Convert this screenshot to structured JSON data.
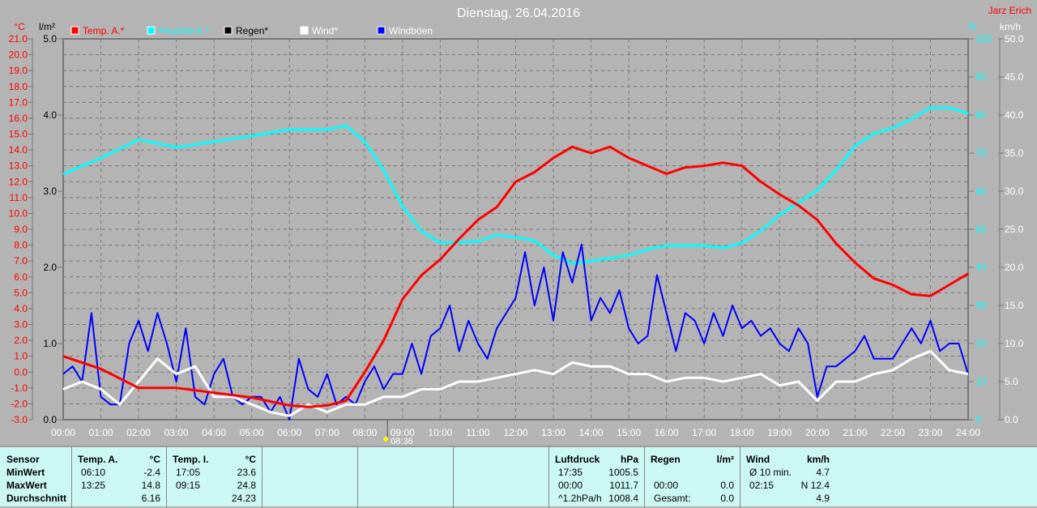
{
  "header": {
    "title": "Dienstag, 26.04.2016",
    "author": "Jarz Erich",
    "marker_time": "08:36"
  },
  "chart_data": {
    "type": "line",
    "title": "Dienstag, 26.04.2016",
    "x_unit": "time (h)",
    "x_ticks": [
      "00:00",
      "01:00",
      "02:00",
      "03:00",
      "04:00",
      "05:00",
      "06:00",
      "07:00",
      "08:00",
      "09:00",
      "10:00",
      "11:00",
      "12:00",
      "13:00",
      "14:00",
      "15:00",
      "16:00",
      "17:00",
      "18:00",
      "19:00",
      "20:00",
      "21:00",
      "22:00",
      "23:00",
      "24:00"
    ],
    "axes": {
      "temp": {
        "unit": "°C",
        "range": [
          -3,
          21
        ],
        "ticks": [
          "21.0",
          "20.0",
          "19.0",
          "18.0",
          "17.0",
          "16.0",
          "15.0",
          "14.0",
          "13.0",
          "12.0",
          "11.0",
          "10.0",
          "9.0",
          "8.0",
          "7.0",
          "6.0",
          "5.0",
          "4.0",
          "3.0",
          "2.0",
          "1.0",
          "0.0",
          "-1.0",
          "-2.0",
          "-3.0"
        ]
      },
      "rain": {
        "unit": "l/m²",
        "range": [
          0,
          5
        ],
        "ticks": [
          "5.0",
          "4.0",
          "3.0",
          "2.0",
          "1.0",
          "0.0"
        ]
      },
      "humidity": {
        "unit": "%",
        "range": [
          0,
          100
        ],
        "ticks": [
          "100",
          "90",
          "80",
          "70",
          "60",
          "50",
          "40",
          "30",
          "20",
          "10",
          "0"
        ]
      },
      "wind": {
        "unit": "km/h",
        "range": [
          0,
          50
        ],
        "ticks": [
          "50.0",
          "45.0",
          "40.0",
          "35.0",
          "30.0",
          "25.0",
          "20.0",
          "15.0",
          "10.0",
          "5.0",
          "0.0"
        ]
      }
    },
    "legend": [
      {
        "name": "Temp. A.*",
        "color": "#ff0000"
      },
      {
        "name": "Feuchte A.*",
        "color": "#00ffff"
      },
      {
        "name": "Regen*",
        "color": "#000000"
      },
      {
        "name": "Wind*",
        "color": "#ffffff"
      },
      {
        "name": "Windböen",
        "color": "#0000ff"
      }
    ],
    "series": [
      {
        "name": "Temp. A.*",
        "axis": "temp",
        "color": "#ff0000",
        "x": [
          0,
          1,
          2,
          3,
          4,
          5,
          6,
          6.5,
          7,
          7.5,
          8,
          8.5,
          9,
          9.5,
          10,
          10.5,
          11,
          11.5,
          12,
          12.5,
          13,
          13.5,
          14,
          14.5,
          15,
          15.5,
          16,
          16.5,
          17,
          17.5,
          18,
          18.5,
          19,
          19.5,
          20,
          20.5,
          21,
          21.5,
          22,
          22.5,
          23,
          23.5,
          24
        ],
        "y": [
          1.0,
          0.2,
          -1.0,
          -1.0,
          -1.3,
          -1.6,
          -2.1,
          -2.2,
          -2.1,
          -1.8,
          0.0,
          2.0,
          4.6,
          6.1,
          7.1,
          8.4,
          9.6,
          10.4,
          12.0,
          12.6,
          13.5,
          14.2,
          13.8,
          14.2,
          13.5,
          13.0,
          12.5,
          12.9,
          13.0,
          13.2,
          13.0,
          12.0,
          11.2,
          10.5,
          9.6,
          8.1,
          6.9,
          5.9,
          5.5,
          4.9,
          4.8,
          5.5,
          6.2
        ]
      },
      {
        "name": "Feuchte A.*",
        "axis": "humidity",
        "color": "#00ffff",
        "x": [
          0,
          1,
          2,
          3,
          4,
          5,
          6,
          7,
          7.5,
          8,
          8.5,
          9,
          9.5,
          10,
          11,
          11.5,
          12,
          12.5,
          13,
          13.5,
          14,
          15,
          15.5,
          16,
          17,
          17.5,
          18,
          18.5,
          19,
          19.5,
          20,
          20.5,
          21,
          21.5,
          22,
          22.5,
          23,
          23.5,
          24
        ],
        "y": [
          64.5,
          68.7,
          73.6,
          71.5,
          73,
          74.5,
          76.2,
          76.2,
          77.2,
          73,
          65.5,
          56,
          49.6,
          46.4,
          46.8,
          48.5,
          47.9,
          47,
          43.2,
          41,
          41.7,
          43.2,
          44.7,
          45.7,
          45.7,
          45.1,
          46.4,
          49.6,
          53.8,
          57,
          60.2,
          65.5,
          71.9,
          75.1,
          76.6,
          79,
          81.9,
          81.9,
          80.4
        ]
      },
      {
        "name": "Windböen",
        "axis": "wind",
        "color": "#0000ff",
        "step": 0.25,
        "y": [
          6,
          7,
          5,
          14,
          3,
          2,
          2,
          10,
          13,
          9,
          14,
          10,
          5,
          12,
          3,
          2,
          6,
          8,
          3,
          2,
          3,
          3,
          1,
          3,
          0,
          8,
          4,
          3,
          6,
          2,
          3,
          2,
          5,
          7,
          4,
          6,
          6,
          10,
          6,
          11,
          12,
          15,
          9,
          13,
          10,
          8,
          12,
          14,
          16,
          22,
          15,
          20,
          13,
          22,
          18,
          23,
          13,
          16,
          14,
          17,
          12,
          10,
          11,
          19,
          14,
          9,
          14,
          13,
          10,
          14,
          11,
          15,
          12,
          13,
          11,
          12,
          10,
          9,
          12,
          10,
          3,
          7,
          7,
          8,
          9,
          11,
          8,
          8,
          8,
          10,
          12,
          10,
          13,
          9,
          10,
          10,
          6
        ]
      },
      {
        "name": "Wind*",
        "axis": "wind",
        "color": "#ffffff",
        "step": 0.5,
        "y": [
          4,
          5,
          4,
          2,
          5,
          8,
          6,
          7,
          3,
          3,
          2,
          1,
          0.5,
          2,
          1,
          2,
          2,
          3,
          3,
          4,
          4,
          5,
          5,
          5.5,
          6,
          6.5,
          6,
          7.5,
          7,
          7,
          6,
          6,
          5,
          5.5,
          5.5,
          5,
          5.5,
          6,
          4.5,
          5,
          2.5,
          5,
          5,
          6,
          6.5,
          8,
          9,
          6.5,
          6
        ]
      }
    ]
  },
  "table": {
    "sensor": {
      "header": "Sensor",
      "rows": [
        "MinWert",
        "MaxWert",
        "Durchschnitt"
      ]
    },
    "temp_a": {
      "header": "Temp. A.",
      "unit": "°C",
      "times": [
        "06:10",
        "13:25",
        ""
      ],
      "values": [
        "-2.4",
        "14.8",
        "6.16"
      ]
    },
    "temp_i": {
      "header": "Temp. I.",
      "unit": "°C",
      "times": [
        "17:05",
        "09:15",
        ""
      ],
      "values": [
        "23.6",
        "24.8",
        "24.23"
      ]
    },
    "pressure": {
      "header": "Luftdruck",
      "unit": "hPa",
      "times": [
        "17:35",
        "00:00",
        "^1.2hPa/h"
      ],
      "values": [
        "1005.5",
        "1011.7",
        "1008.4"
      ]
    },
    "rain": {
      "header": "Regen",
      "unit": "l/m²",
      "times": [
        "",
        "00:00",
        "Gesamt:"
      ],
      "values": [
        "",
        "0.0",
        "0.0"
      ]
    },
    "wind": {
      "header": "Wind",
      "unit": "km/h",
      "times": [
        "Ø 10 min.",
        "02:15",
        ""
      ],
      "values": [
        "4.7",
        "N 12.4",
        "4.9"
      ]
    }
  }
}
